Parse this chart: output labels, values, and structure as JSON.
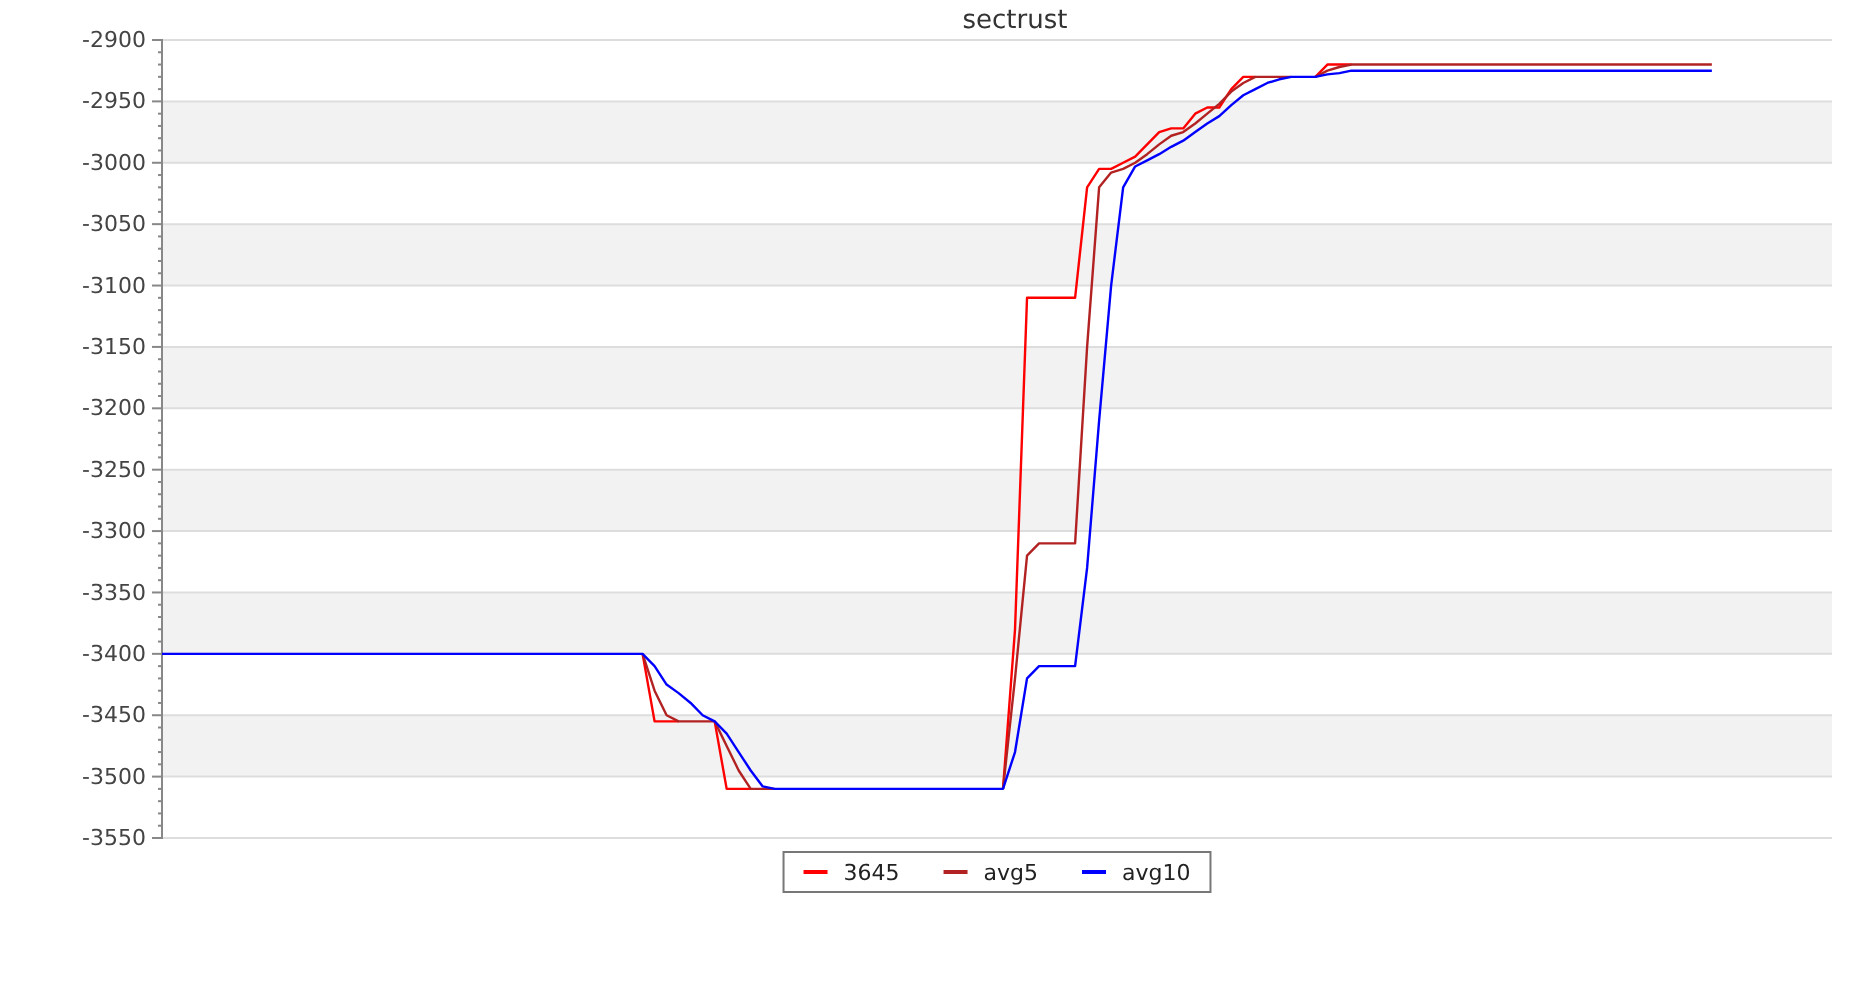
{
  "chart_data": {
    "type": "line",
    "title": "sectrust",
    "categories": [
      null,
      null,
      null,
      null,
      null,
      null,
      null,
      null,
      null,
      null,
      null,
      null,
      null,
      null,
      null,
      null,
      null,
      null,
      null,
      null,
      null,
      null,
      null,
      null,
      null,
      null,
      null,
      null,
      null,
      null,
      null,
      null,
      null,
      null,
      null,
      null,
      null,
      null,
      null,
      null,
      null,
      null,
      null,
      null,
      null,
      null,
      null,
      null,
      null,
      null,
      null,
      null,
      null,
      null,
      null,
      null,
      null,
      null,
      null,
      null,
      null,
      null,
      null,
      null,
      null,
      null,
      null,
      null,
      null,
      null,
      null,
      null,
      null,
      null,
      null,
      null,
      null,
      null,
      null,
      null,
      null,
      null,
      null,
      null,
      null,
      null,
      null,
      null,
      null,
      null,
      null,
      null,
      null,
      null,
      null,
      null,
      null,
      null,
      null,
      null,
      null,
      null,
      null,
      null,
      null,
      null,
      null,
      null,
      null,
      null,
      null,
      null,
      null,
      null,
      null,
      null,
      null,
      null,
      null,
      null,
      null,
      null,
      null,
      null,
      null,
      null,
      null,
      null,
      null,
      null,
      null,
      null,
      null,
      null,
      null,
      null,
      null,
      null,
      null,
      null
    ],
    "ylim": [
      -3550,
      -2900
    ],
    "yticks": [
      -3550,
      -3500,
      -3450,
      -3400,
      -3350,
      -3300,
      -3250,
      -3200,
      -3150,
      -3100,
      -3050,
      -3000,
      -2950,
      -2900
    ],
    "grid": "y",
    "tick_labels": "y",
    "legend": "bottom",
    "marker": "none",
    "line_style": "solid",
    "series": [
      {
        "name": "3645",
        "color": "#ff0000",
        "values": [
          null,
          null,
          null,
          null,
          null,
          null,
          null,
          null,
          null,
          null,
          null,
          null,
          null,
          null,
          null,
          null,
          null,
          null,
          null,
          null,
          null,
          null,
          null,
          null,
          null,
          null,
          null,
          null,
          null,
          null,
          null,
          null,
          null,
          null,
          null,
          null,
          null,
          null,
          null,
          null,
          -3400,
          -3455,
          -3455,
          -3455,
          null,
          null,
          -3455,
          -3510,
          -3510,
          -3510,
          null,
          null,
          null,
          null,
          null,
          null,
          null,
          null,
          null,
          null,
          null,
          null,
          null,
          null,
          null,
          null,
          null,
          null,
          null,
          null,
          -3510,
          -3380,
          -3110,
          -3110,
          -3110,
          -3110,
          -3110,
          -3020,
          -3005,
          -3005,
          -3000,
          -2995,
          -2985,
          -2975,
          -2972,
          -2972,
          -2960,
          -2955,
          -2955,
          -2940,
          -2930,
          -2930,
          null,
          null,
          null,
          null,
          -2930,
          -2920,
          -2920,
          -2920,
          null,
          null,
          null,
          null,
          null,
          null,
          null,
          null,
          null,
          null,
          null,
          null,
          null,
          null,
          null,
          null,
          null,
          null,
          null,
          null,
          null,
          null,
          null,
          null,
          null,
          null,
          null,
          null,
          null,
          null,
          null,
          null,
          null,
          null,
          null,
          null,
          null,
          null,
          null,
          null
        ]
      },
      {
        "name": "avg5",
        "color": "#b22222",
        "values": [
          null,
          null,
          null,
          null,
          null,
          null,
          null,
          null,
          null,
          null,
          null,
          null,
          null,
          null,
          null,
          null,
          null,
          null,
          null,
          null,
          null,
          null,
          null,
          null,
          null,
          null,
          null,
          null,
          null,
          null,
          null,
          null,
          null,
          null,
          null,
          null,
          null,
          null,
          null,
          null,
          -3400,
          -3430,
          -3450,
          -3455,
          -3455,
          -3455,
          -3455,
          -3475,
          -3495,
          -3510,
          -3510,
          -3510,
          null,
          null,
          null,
          null,
          null,
          null,
          null,
          null,
          null,
          null,
          null,
          null,
          null,
          null,
          null,
          null,
          null,
          null,
          -3510,
          -3420,
          -3320,
          -3310,
          -3310,
          -3310,
          -3310,
          -3150,
          -3020,
          -3008,
          -3005,
          -3000,
          -2993,
          -2985,
          -2978,
          -2975,
          -2968,
          -2960,
          -2952,
          -2942,
          -2935,
          -2930,
          -2930,
          -2930,
          -2930,
          null,
          -2930,
          -2925,
          -2922,
          -2920,
          -2920,
          -2920,
          -2920,
          -2920,
          -2920,
          -2920,
          -2920,
          -2920,
          -2920,
          -2920,
          -2920,
          -2920,
          -2920,
          -2920,
          -2920,
          -2920,
          -2920,
          -2920,
          -2920,
          -2920,
          -2920,
          -2920,
          -2920,
          -2920,
          -2920,
          -2920,
          -2920,
          -2920,
          -2920,
          -2920,
          null,
          null,
          null,
          null,
          null,
          null,
          null,
          null,
          null,
          null
        ]
      },
      {
        "name": "avg10",
        "color": "#0000ff",
        "values": [
          -3400,
          -3400,
          -3400,
          -3400,
          -3400,
          -3400,
          -3400,
          -3400,
          -3400,
          -3400,
          -3400,
          -3400,
          -3400,
          -3400,
          -3400,
          -3400,
          -3400,
          -3400,
          -3400,
          -3400,
          -3400,
          -3400,
          -3400,
          -3400,
          -3400,
          -3400,
          -3400,
          -3400,
          -3400,
          -3400,
          -3400,
          -3400,
          -3400,
          -3400,
          -3400,
          -3400,
          -3400,
          -3400,
          -3400,
          -3400,
          -3400,
          -3410,
          -3425,
          -3432,
          -3440,
          -3450,
          -3455,
          -3465,
          -3480,
          -3495,
          -3508,
          -3510,
          -3510,
          -3510,
          -3510,
          -3510,
          -3510,
          -3510,
          -3510,
          -3510,
          -3510,
          -3510,
          -3510,
          -3510,
          -3510,
          -3510,
          -3510,
          -3510,
          -3510,
          -3510,
          -3510,
          -3480,
          -3420,
          -3410,
          -3410,
          -3410,
          -3410,
          -3330,
          -3210,
          -3100,
          -3020,
          -3003,
          -2998,
          -2993,
          -2987,
          -2982,
          -2975,
          -2968,
          -2962,
          -2953,
          -2945,
          -2940,
          -2935,
          -2932,
          -2930,
          -2930,
          -2930,
          -2928,
          -2927,
          -2925,
          -2925,
          -2925,
          -2925,
          -2925,
          -2925,
          -2925,
          -2925,
          -2925,
          -2925,
          -2925,
          -2925,
          -2925,
          -2925,
          -2925,
          -2925,
          -2925,
          -2925,
          -2925,
          -2925,
          -2925,
          -2925,
          -2925,
          -2925,
          -2925,
          -2925,
          -2925,
          -2925,
          -2925,
          -2925,
          -2925,
          null,
          null,
          null,
          null,
          null,
          null,
          null,
          null,
          null,
          null
        ]
      }
    ]
  }
}
